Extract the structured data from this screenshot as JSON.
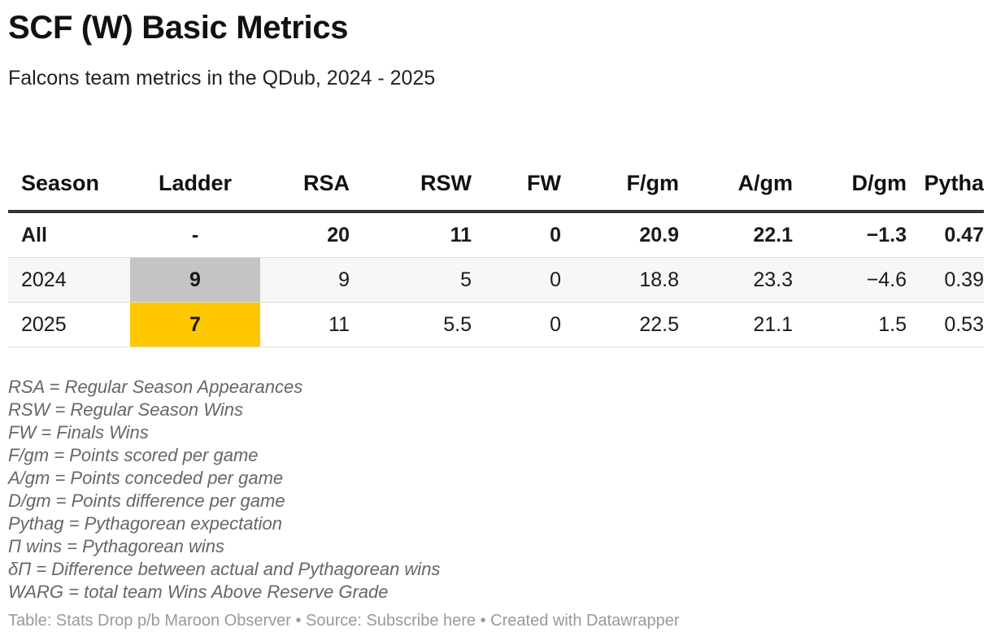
{
  "title": "SCF (W) Basic Metrics",
  "subtitle": "Falcons team metrics in the QDub, 2024 - 2025",
  "colors": {
    "ladder_2024": "#c4c4c4",
    "ladder_2025": "#ffc800"
  },
  "chart_data": {
    "type": "table",
    "columns": [
      "Season",
      "Ladder",
      "RSA",
      "RSW",
      "FW",
      "F/gm",
      "A/gm",
      "D/gm",
      "Pytha"
    ],
    "rows": [
      [
        "All",
        "-",
        "20",
        "11",
        "0",
        "20.9",
        "22.1",
        "−1.3",
        "0.47"
      ],
      [
        "2024",
        "9",
        "9",
        "5",
        "0",
        "18.8",
        "23.3",
        "−4.6",
        "0.39"
      ],
      [
        "2025",
        "7",
        "11",
        "5.5",
        "0",
        "22.5",
        "21.1",
        "1.5",
        "0.53"
      ]
    ]
  },
  "footnotes": [
    "RSA = Regular Season Appearances",
    "RSW = Regular Season Wins",
    "FW = Finals Wins",
    "F/gm = Points scored per game",
    "A/gm = Points conceded per game",
    "D/gm = Points difference per game",
    "Pythag = Pythagorean expectation",
    "Π wins = Pythagorean wins",
    "δΠ = Difference between actual and Pythagorean wins",
    "WARG = total team Wins Above Reserve Grade"
  ],
  "credit": "Table: Stats Drop p/b Maroon Observer • Source: Subscribe here • Created with Datawrapper"
}
